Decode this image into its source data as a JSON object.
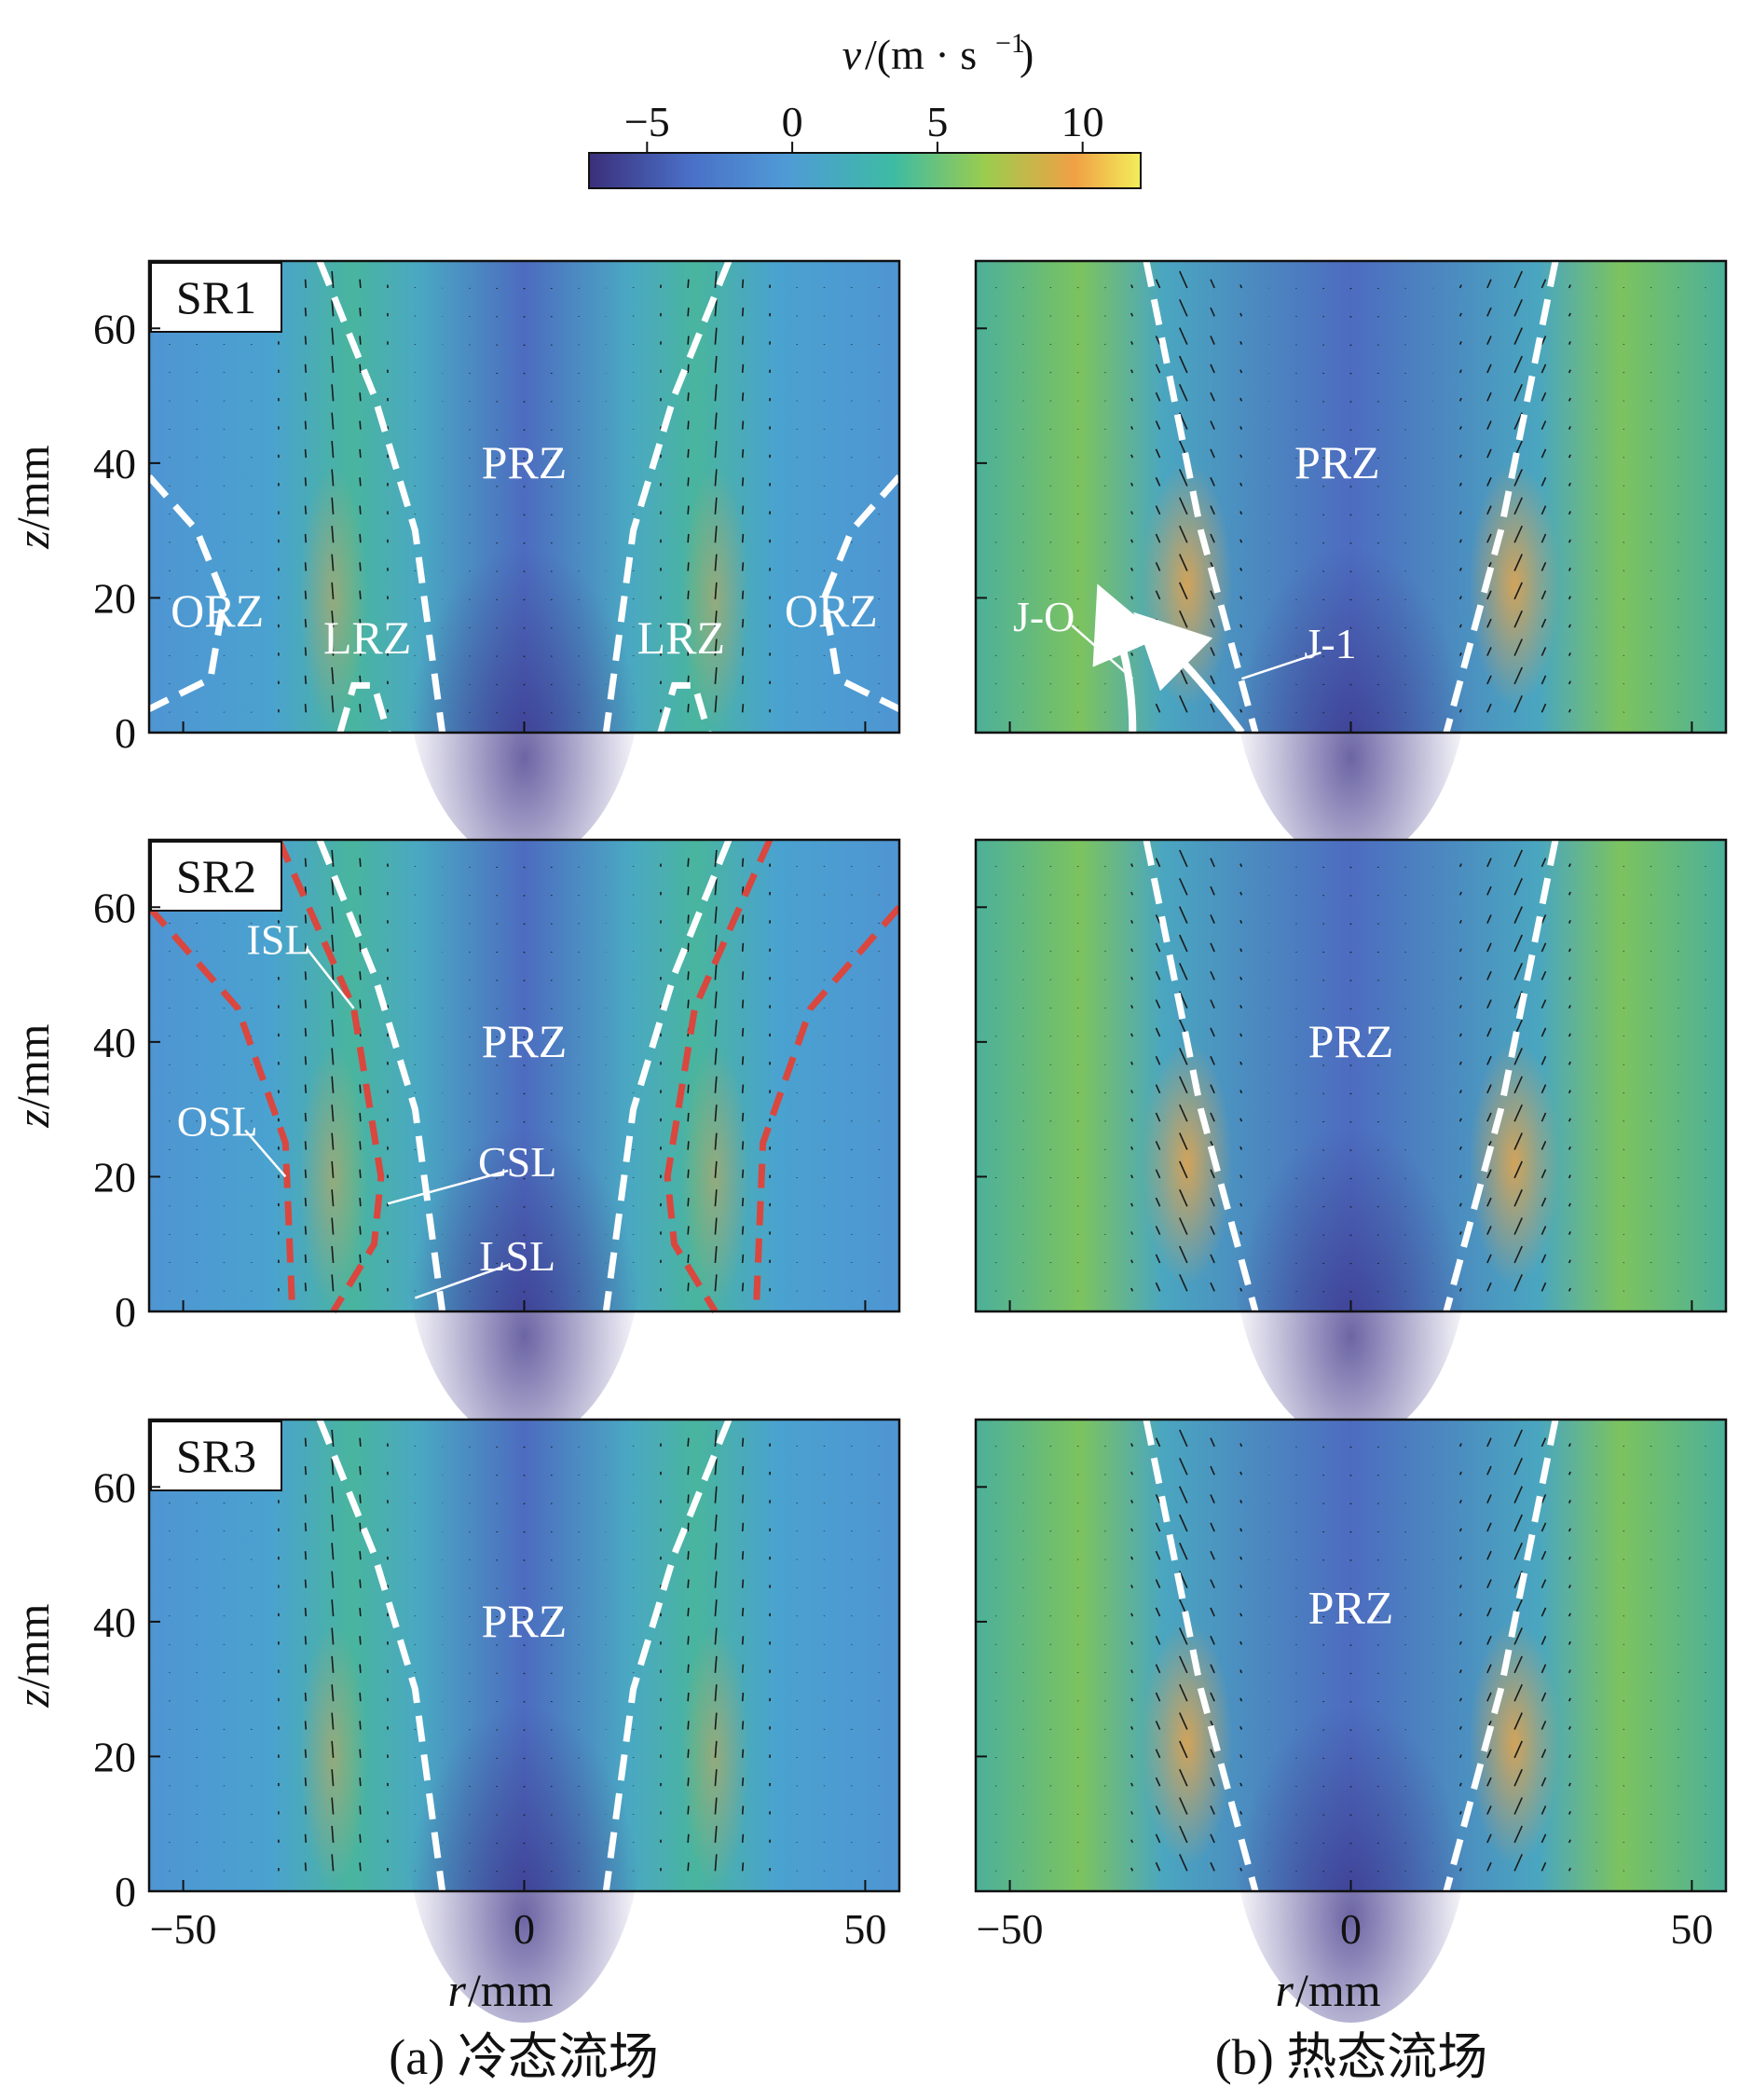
{
  "colorbar": {
    "label_var": "v",
    "label_unit": "/(m · s",
    "label_exp": "−1",
    "label_close": ")",
    "ticks": [
      {
        "value": -5,
        "label": "−5"
      },
      {
        "value": 0,
        "label": "0"
      },
      {
        "value": 5,
        "label": "5"
      },
      {
        "value": 10,
        "label": "10"
      }
    ],
    "range": [
      -7,
      12
    ],
    "colormap": [
      "#3b2f7a",
      "#4a6fc6",
      "#4f9bd6",
      "#3dbba4",
      "#9ccc4e",
      "#f0a045",
      "#f2ee5a"
    ]
  },
  "chart_data": [
    {
      "type": "heatmap",
      "panel": "SR1-cold",
      "label": "SR1",
      "xlim": [
        -55,
        55
      ],
      "ylim": [
        0,
        70
      ],
      "zones": [
        "PRZ",
        "ORZ",
        "LRZ",
        "LRZ",
        "ORZ"
      ],
      "annotations": []
    },
    {
      "type": "heatmap",
      "panel": "SR1-hot",
      "label": "",
      "xlim": [
        -55,
        55
      ],
      "ylim": [
        0,
        70
      ],
      "zones": [
        "PRZ"
      ],
      "annotations": [
        "J-O",
        "J-1"
      ]
    },
    {
      "type": "heatmap",
      "panel": "SR2-cold",
      "label": "SR2",
      "xlim": [
        -55,
        55
      ],
      "ylim": [
        0,
        70
      ],
      "zones": [
        "PRZ"
      ],
      "annotations": [
        "ISL",
        "OSL",
        "CSL",
        "LSL"
      ]
    },
    {
      "type": "heatmap",
      "panel": "SR2-hot",
      "label": "",
      "xlim": [
        -55,
        55
      ],
      "ylim": [
        0,
        70
      ],
      "zones": [
        "PRZ"
      ],
      "annotations": []
    },
    {
      "type": "heatmap",
      "panel": "SR3-cold",
      "label": "SR3",
      "xlim": [
        -55,
        55
      ],
      "ylim": [
        0,
        70
      ],
      "zones": [
        "PRZ"
      ],
      "annotations": []
    },
    {
      "type": "heatmap",
      "panel": "SR3-hot",
      "label": "",
      "xlim": [
        -55,
        55
      ],
      "ylim": [
        0,
        70
      ],
      "zones": [
        "PRZ"
      ],
      "annotations": []
    }
  ],
  "axes": {
    "x_ticks": [
      {
        "value": -50,
        "label": "−50"
      },
      {
        "value": 0,
        "label": "0"
      },
      {
        "value": 50,
        "label": "50"
      }
    ],
    "y_ticks": [
      {
        "value": 0,
        "label": "0"
      },
      {
        "value": 20,
        "label": "20"
      },
      {
        "value": 40,
        "label": "40"
      },
      {
        "value": 60,
        "label": "60"
      }
    ],
    "xlabel_var": "r",
    "xlabel_unit": "/mm",
    "ylabel_var": "z",
    "ylabel_unit": "/mm"
  },
  "captions": {
    "a": "(a) 冷态流场",
    "b": "(b) 热态流场"
  }
}
